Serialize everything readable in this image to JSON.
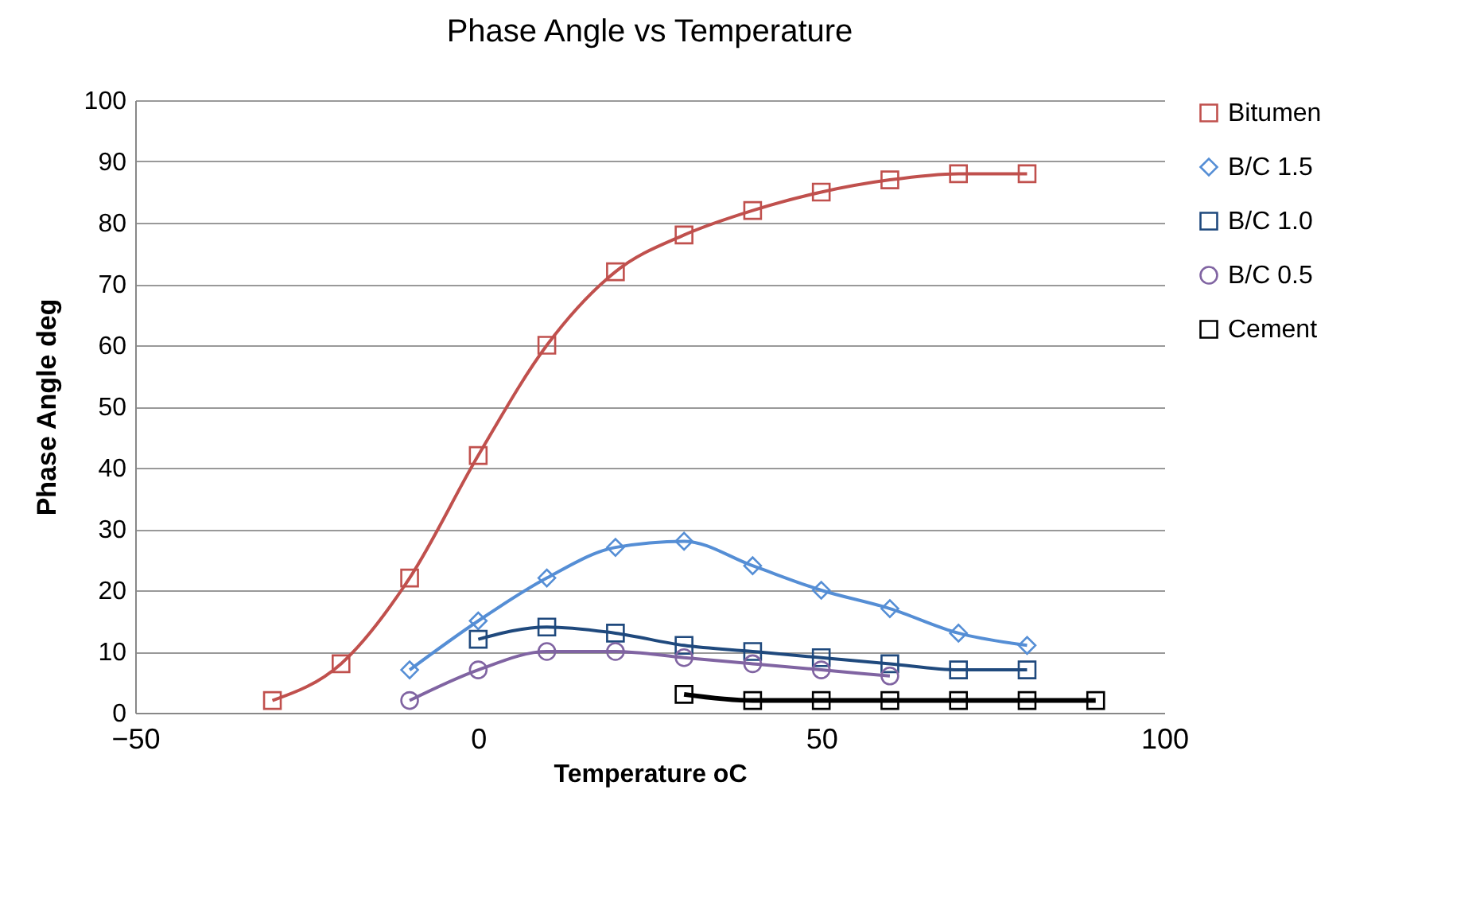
{
  "chart_data": {
    "type": "line",
    "title": "Phase Angle vs Temperature",
    "xlabel": "Temperature oC",
    "ylabel": "Phase Angle deg",
    "xlim": [
      -50,
      100
    ],
    "xticks": [
      -50,
      0,
      50,
      100
    ],
    "ylim": [
      0,
      100
    ],
    "yticks": [
      0,
      10,
      20,
      30,
      40,
      50,
      60,
      70,
      80,
      90,
      100
    ],
    "grid": "y",
    "legend": "right",
    "series": [
      {
        "name": "Bitumen",
        "color": "#c0504d",
        "marker": "square",
        "x": [
          -30,
          -20,
          -10,
          0,
          10,
          20,
          30,
          40,
          50,
          60,
          70,
          80
        ],
        "values": [
          2,
          8,
          22,
          42,
          60,
          72,
          78,
          82,
          85,
          87,
          88,
          88
        ]
      },
      {
        "name": "B/C 1.5",
        "color": "#558ed5",
        "marker": "diamond",
        "x": [
          -10,
          0,
          10,
          20,
          30,
          40,
          50,
          60,
          70,
          80
        ],
        "values": [
          7,
          15,
          22,
          27,
          28,
          24,
          20,
          17,
          13,
          11
        ]
      },
      {
        "name": "B/C 1.0",
        "color": "#1f497d",
        "marker": "square",
        "x": [
          0,
          10,
          20,
          30,
          40,
          50,
          60,
          70,
          80
        ],
        "values": [
          12,
          14,
          13,
          11,
          10,
          9,
          8,
          7,
          7
        ]
      },
      {
        "name": "B/C 0.5",
        "color": "#8064a2",
        "marker": "circle",
        "x": [
          -10,
          0,
          10,
          20,
          30,
          40,
          50,
          60
        ],
        "values": [
          2,
          7,
          10,
          10,
          9,
          8,
          7,
          6
        ]
      },
      {
        "name": "Cement",
        "color": "#000000",
        "marker": "square",
        "x": [
          30,
          40,
          50,
          60,
          70,
          80,
          90
        ],
        "values": [
          3,
          2,
          2,
          2,
          2,
          2,
          2
        ]
      }
    ]
  }
}
